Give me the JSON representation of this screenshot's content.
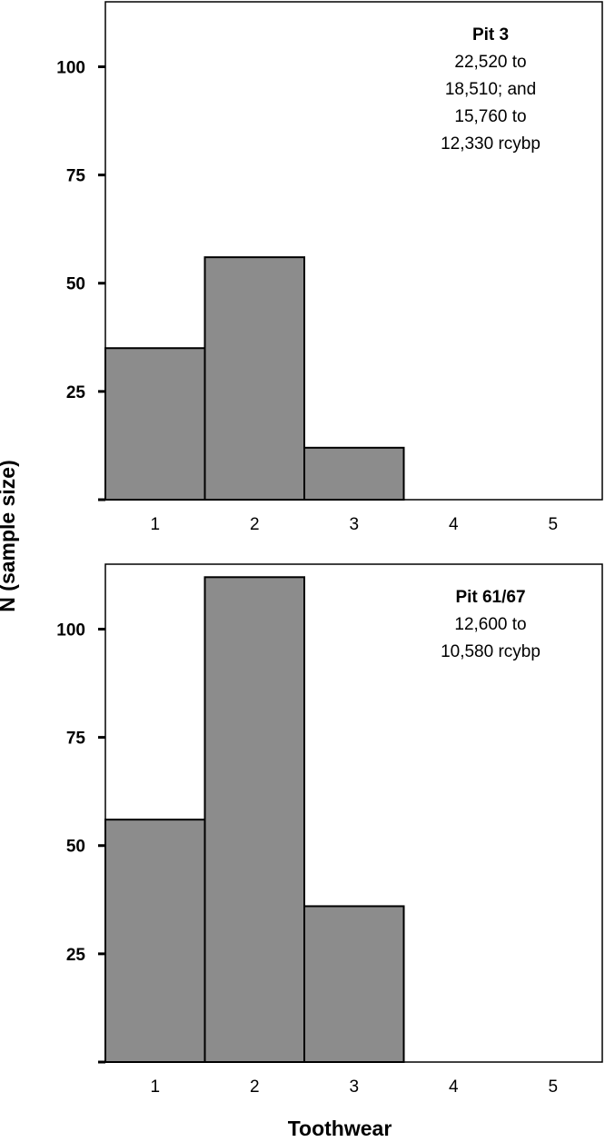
{
  "figure": {
    "ylabel": "N (sample size)",
    "xlabel": "Toothwear"
  },
  "colors": {
    "bar_fill": "#8c8c8c",
    "bar_stroke": "#000000",
    "frame": "#000000",
    "text": "#000000"
  },
  "chart_data": [
    {
      "type": "bar",
      "title": "Pit 3",
      "annotation_lines": [
        "22,520 to",
        "18,510; and",
        "15,760 to",
        "12,330 rcybp"
      ],
      "categories": [
        "1",
        "2",
        "3",
        "4",
        "5"
      ],
      "values": [
        35,
        56,
        12,
        0,
        0
      ],
      "ylim": [
        0,
        115
      ],
      "yticks": [
        0,
        25,
        50,
        75,
        100
      ],
      "ytick_labels": [
        "",
        "25",
        "50",
        "75",
        "100"
      ],
      "grid": false
    },
    {
      "type": "bar",
      "title": "Pit 61/67",
      "annotation_lines": [
        "12,600 to",
        "10,580 rcybp"
      ],
      "categories": [
        "1",
        "2",
        "3",
        "4",
        "5"
      ],
      "values": [
        56,
        112,
        36,
        0,
        0
      ],
      "ylim": [
        0,
        115
      ],
      "yticks": [
        0,
        25,
        50,
        75,
        100
      ],
      "ytick_labels": [
        "",
        "25",
        "50",
        "75",
        "100"
      ],
      "grid": false
    }
  ]
}
